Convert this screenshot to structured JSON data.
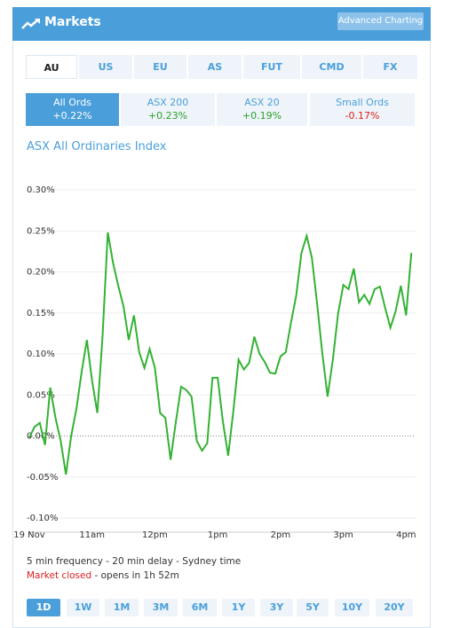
{
  "header": {
    "title": "Markets",
    "button": "Advanced Charting"
  },
  "tabs": [
    "AU",
    "US",
    "EU",
    "AS",
    "FUT",
    "CMD",
    "FX"
  ],
  "indices": [
    {
      "name": "All Ords",
      "change": "+0.22%",
      "color": "#ffffff"
    },
    {
      "name": "ASX 200",
      "change": "+0.23%",
      "color": "#2ea02e"
    },
    {
      "name": "ASX 20",
      "change": "+0.19%",
      "color": "#2ea02e"
    },
    {
      "name": "Small Ords",
      "change": "-0.17%",
      "color": "#e02020"
    }
  ],
  "chart_data": {
    "type": "line",
    "title": "ASX All Ordinaries Index",
    "series": [
      {
        "color": "#33b233",
        "values": [
          -0.002,
          0.011,
          0.016,
          -0.011,
          0.059,
          0.022,
          -0.006,
          -0.047,
          0,
          0.033,
          0.078,
          0.117,
          0.067,
          0.028,
          0.122,
          0.248,
          0.211,
          0.183,
          0.158,
          0.117,
          0.147,
          0.102,
          0.083,
          0.106,
          0.083,
          0.028,
          0.022,
          -0.029,
          0.017,
          0.06,
          0.056,
          0.048,
          -0.006,
          -0.018,
          -0.009,
          0.071,
          0.071,
          0.017,
          -0.024,
          0.031,
          0.093,
          0.081,
          0.089,
          0.121,
          0.1,
          0.09,
          0.077,
          0.076,
          0.097,
          0.102,
          0.138,
          0.171,
          0.223,
          0.244,
          0.217,
          0.161,
          0.1,
          0.048,
          0.093,
          0.149,
          0.184,
          0.179,
          0.204,
          0.163,
          0.172,
          0.161,
          0.179,
          0.182,
          0.156,
          0.132,
          0.152,
          0.183,
          0.147,
          0.223
        ]
      }
    ],
    "xlim": [
      0,
      75
    ],
    "xticks": [
      {
        "value": 0,
        "label": "19 Nov"
      },
      {
        "value": 12,
        "label": "11am"
      },
      {
        "value": 24,
        "label": "12pm"
      },
      {
        "value": 36,
        "label": "1pm"
      },
      {
        "value": 48,
        "label": "2pm"
      },
      {
        "value": 60,
        "label": "3pm"
      },
      {
        "value": 72,
        "label": "4pm"
      }
    ],
    "ylim": [
      -0.1,
      0.3
    ],
    "yticks": [
      {
        "value": -0.1,
        "label": "-0.10%"
      },
      {
        "value": -0.05,
        "label": "-0.05%"
      },
      {
        "value": 0,
        "label": "0.00%"
      },
      {
        "value": 0.05,
        "label": "0.05%"
      },
      {
        "value": 0.1,
        "label": "0.10%"
      },
      {
        "value": 0.15,
        "label": "0.15%"
      },
      {
        "value": 0.2,
        "label": "0.20%"
      },
      {
        "value": 0.25,
        "label": "0.25%"
      },
      {
        "value": 0.3,
        "label": "0.30%"
      }
    ],
    "grid": true
  },
  "footer": {
    "frequency": "5 min frequency - 20 min delay - Sydney time",
    "status": "Market closed",
    "status_rest": "- opens in 1h 52m"
  },
  "periods": [
    "1D",
    "1W",
    "1M",
    "3M",
    "6M",
    "1Y",
    "3Y",
    "5Y",
    "10Y",
    "20Y"
  ]
}
